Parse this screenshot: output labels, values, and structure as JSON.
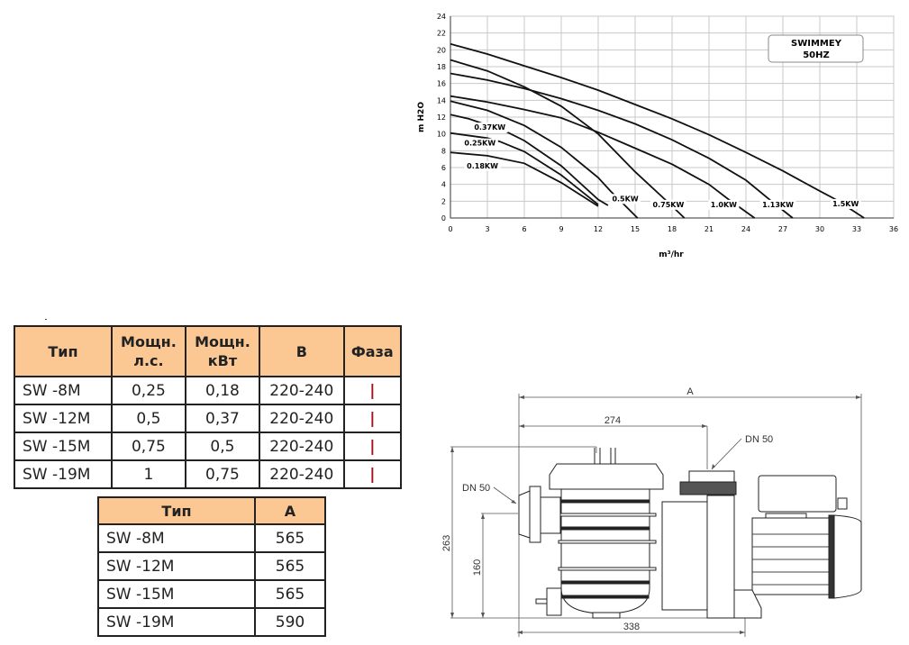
{
  "chart_data": {
    "type": "line",
    "title": "SWIMMEY 50HZ",
    "title_lines": [
      "SWIMMEY",
      "50HZ"
    ],
    "xlabel": "m³/hr",
    "ylabel": "m H2O",
    "xlim": [
      0,
      36
    ],
    "ylim": [
      0,
      24
    ],
    "xticks": [
      0,
      3,
      6,
      9,
      12,
      15,
      18,
      21,
      24,
      27,
      30,
      33,
      36
    ],
    "yticks": [
      0,
      2,
      4,
      6,
      8,
      10,
      12,
      14,
      16,
      18,
      20,
      22,
      24
    ],
    "grid": true,
    "series": [
      {
        "name": "0.18KW",
        "x": [
          0,
          3,
          6,
          9,
          12
        ],
        "y": [
          7.8,
          7.4,
          6.5,
          4.2,
          1.4
        ]
      },
      {
        "name": "0.25KW",
        "x": [
          0,
          3,
          4,
          6,
          9,
          12
        ],
        "y": [
          10.1,
          9.5,
          9.1,
          7.9,
          5.1,
          1.6
        ]
      },
      {
        "name": "0.37KW",
        "x": [
          0,
          1.5,
          4.5,
          6,
          9,
          12,
          12.8
        ],
        "y": [
          12.3,
          11.8,
          10.3,
          9.2,
          6.2,
          2.2,
          1.5
        ]
      },
      {
        "name": "0.5KW",
        "x": [
          0,
          3,
          6,
          9,
          12,
          13,
          15.2
        ],
        "y": [
          13.9,
          12.8,
          11,
          8.4,
          4.8,
          3.2,
          0
        ]
      },
      {
        "name": "0.75KW",
        "x": [
          0,
          3,
          6,
          9,
          12,
          15,
          17.5,
          19
        ],
        "y": [
          18.8,
          17.5,
          15.6,
          13.3,
          10,
          5.5,
          2.1,
          0
        ]
      },
      {
        "name": "1.0KW",
        "x": [
          0,
          3,
          6,
          9,
          12,
          15,
          18,
          21,
          22.6,
          24.7
        ],
        "y": [
          14.5,
          13.8,
          12.9,
          11.9,
          10.2,
          8.3,
          6.4,
          4.0,
          2.2,
          0
        ]
      },
      {
        "name": "1.13KW",
        "x": [
          0,
          3,
          6,
          9,
          12,
          15,
          18,
          21,
          24,
          26,
          27.8
        ],
        "y": [
          17.2,
          16.4,
          15.4,
          14.2,
          12.8,
          11.2,
          9.3,
          7.1,
          4.5,
          2.1,
          0
        ]
      },
      {
        "name": "1.5KW",
        "x": [
          0,
          3,
          6,
          9,
          12,
          15,
          18,
          21,
          24,
          27,
          30,
          31.3,
          33.6
        ],
        "y": [
          20.7,
          19.5,
          18.1,
          16.7,
          15.2,
          13.5,
          11.8,
          9.9,
          7.8,
          5.6,
          3.2,
          2.2,
          0
        ]
      }
    ],
    "labels": [
      {
        "text": "0.37KW",
        "x": 3.2,
        "y": 10.5
      },
      {
        "text": "0.25KW",
        "x": 2.4,
        "y": 8.6
      },
      {
        "text": "0.18KW",
        "x": 2.6,
        "y": 5.9
      },
      {
        "text": "0.5KW",
        "x": 14.2,
        "y": 2.0
      },
      {
        "text": "0.75KW",
        "x": 17.7,
        "y": 1.3
      },
      {
        "text": "1.0KW",
        "x": 22.2,
        "y": 1.3
      },
      {
        "text": "1.13KW",
        "x": 26.6,
        "y": 1.3
      },
      {
        "text": "1.5KW",
        "x": 32.1,
        "y": 1.4
      }
    ]
  },
  "table_power": {
    "headers": [
      [
        "Тип"
      ],
      [
        "Мощн.",
        "л.с."
      ],
      [
        "Мощн.",
        "кВт"
      ],
      [
        "В"
      ],
      [
        "Фаза"
      ]
    ],
    "rows": [
      [
        "SW -8M",
        "0,25",
        "0,18",
        "220-240",
        "|"
      ],
      [
        "SW -12M",
        "0,5",
        "0,37",
        "220-240",
        "|"
      ],
      [
        "SW -15M",
        "0,75",
        "0,5",
        "220-240",
        "|"
      ],
      [
        "SW -19M",
        "1",
        "0,75",
        "220-240",
        "|"
      ]
    ]
  },
  "table_dims": {
    "headers": [
      "Тип",
      "A"
    ],
    "rows": [
      [
        "SW -8M",
        "565"
      ],
      [
        "SW -12M",
        "565"
      ],
      [
        "SW -15M",
        "565"
      ],
      [
        "SW -19M",
        "590"
      ]
    ]
  },
  "drawing": {
    "dim_a": "A",
    "dim_274": "274",
    "dim_263": "263",
    "dim_160": "160",
    "dim_338": "338",
    "outlet_label": "DN 50",
    "inlet_label": "DN 50"
  },
  "colors": {
    "header_bg": "#fbc894",
    "phase_mark": "#a3121d",
    "grid": "#c8c8c8"
  }
}
